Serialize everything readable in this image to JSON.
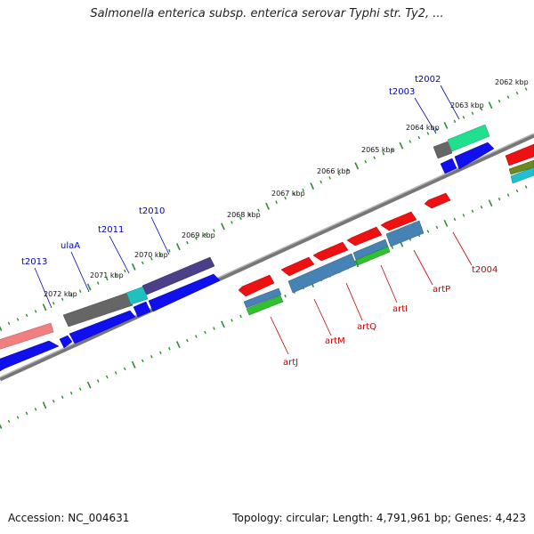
{
  "title": "Salmonella enterica subsp. enterica serovar Typhi str. Ty2, ...",
  "footer": {
    "accession": "Accession: NC_004631",
    "topology": "Topology: circular; Length: 4,791,961 bp; Genes: 4,423"
  },
  "colors": {
    "background": "#ffffff",
    "ruler_tick": "#2e8b2e",
    "backbone": "#777777",
    "label_blue": "#0000cc",
    "label_red": "#cc0000",
    "scale_label": "#111111"
  },
  "scale_labels": [
    "2062 kbp",
    "2063 kbp",
    "2064 kbp",
    "2065 kbp",
    "2066 kbp",
    "2067 kbp",
    "2068 kbp",
    "2069 kbp",
    "2070 kbp",
    "2071 kbp",
    "2072 kbp"
  ],
  "gene_labels_blue": [
    "t2002",
    "t2003",
    "t2010",
    "t2011",
    "ulaA",
    "t2013"
  ],
  "gene_labels_red": [
    "t2004",
    "artP",
    "artI",
    "artQ",
    "artM",
    "artJ"
  ]
}
